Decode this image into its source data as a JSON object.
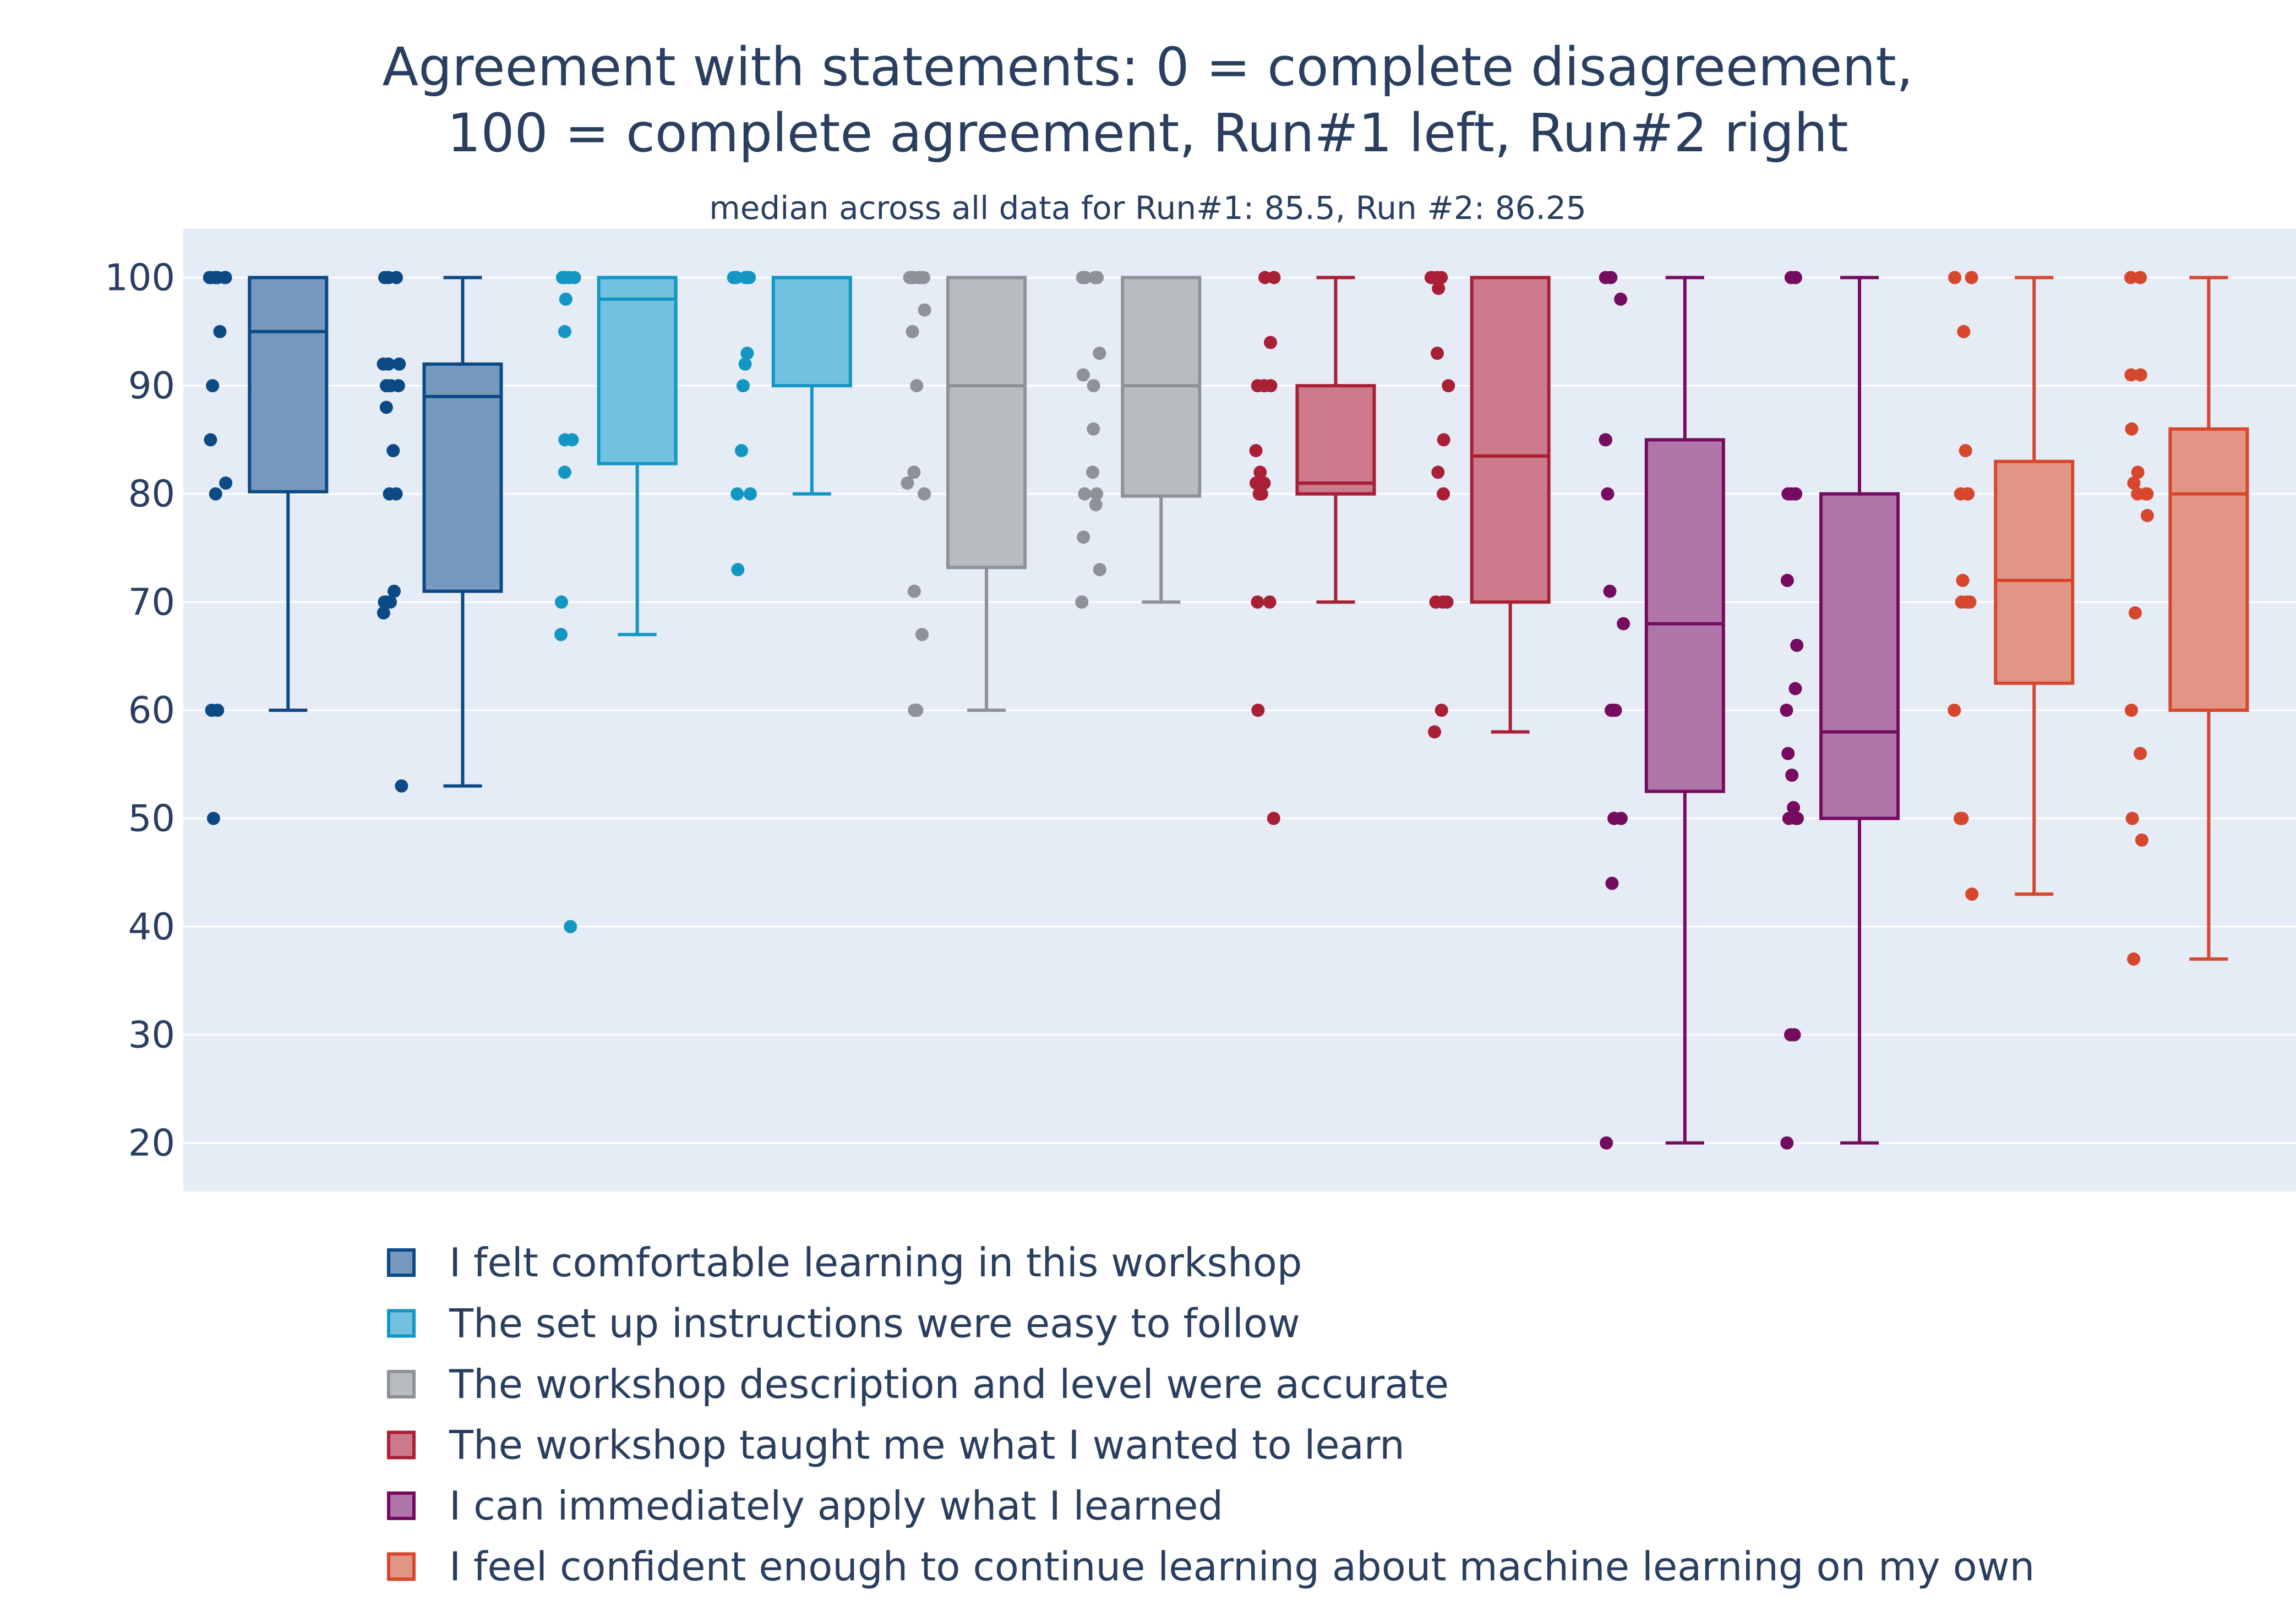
{
  "chart_data": {
    "type": "box",
    "title_lines": [
      "Agreement with statements: 0 = complete disagreement,",
      "100 = complete agreement, Run#1 left, Run#2 right"
    ],
    "subtitle": "median across all data for Run#1: 85.5, Run #2: 86.25",
    "xlabel": "",
    "ylabel": "",
    "ylim": [
      15.5,
      104.5
    ],
    "yticks": [
      20,
      30,
      40,
      50,
      60,
      70,
      80,
      90,
      100
    ],
    "grid": true,
    "legend_position": "bottom",
    "points_shown": "all",
    "series": [
      {
        "name": "I felt comfortable learning in this workshop",
        "color": "#0d4a85",
        "fill": "#7599bf",
        "runs": [
          {
            "run": "Run#1",
            "min": 60,
            "q1": 80.2,
            "median": 95,
            "q3": 100,
            "max": 100,
            "points": [
              100,
              100,
              100,
              100,
              100,
              100,
              100,
              100,
              95,
              90,
              85,
              81,
              80,
              60,
              60,
              50
            ]
          },
          {
            "run": "Run#2",
            "min": 53,
            "q1": 71,
            "median": 89,
            "q3": 92,
            "max": 100,
            "points": [
              100,
              100,
              100,
              92,
              92,
              92,
              90,
              90,
              90,
              88,
              84,
              80,
              80,
              71,
              70,
              70,
              70,
              69,
              53
            ]
          }
        ]
      },
      {
        "name": "The set up instructions were easy to follow",
        "color": "#1396c4",
        "fill": "#72c2df",
        "runs": [
          {
            "run": "Run#1",
            "min": 67,
            "q1": 82.8,
            "median": 98,
            "q3": 100,
            "max": 100,
            "points": [
              100,
              100,
              100,
              100,
              100,
              100,
              98,
              95,
              85,
              85,
              82,
              70,
              67,
              40
            ]
          },
          {
            "run": "Run#2",
            "min": 80,
            "q1": 90,
            "median": 100,
            "q3": 100,
            "max": 100,
            "points": [
              100,
              100,
              100,
              100,
              100,
              100,
              93,
              92,
              90,
              84,
              80,
              80,
              73
            ]
          }
        ]
      },
      {
        "name": "The workshop description and level were accurate",
        "color": "#8e9196",
        "fill": "#b9bcc0",
        "runs": [
          {
            "run": "Run#1",
            "min": 60,
            "q1": 73.2,
            "median": 90,
            "q3": 100,
            "max": 100,
            "points": [
              100,
              100,
              100,
              100,
              100,
              100,
              97,
              95,
              90,
              82,
              81,
              80,
              71,
              67,
              60,
              60
            ]
          },
          {
            "run": "Run#2",
            "min": 70,
            "q1": 79.8,
            "median": 90,
            "q3": 100,
            "max": 100,
            "points": [
              100,
              100,
              100,
              100,
              93,
              91,
              90,
              86,
              82,
              80,
              80,
              79,
              76,
              73,
              70
            ]
          }
        ]
      },
      {
        "name": "The workshop taught me what I wanted to learn",
        "color": "#a81f36",
        "fill": "#cb7b8b",
        "runs": [
          {
            "run": "Run#1",
            "min": 70,
            "q1": 80,
            "median": 81,
            "q3": 90,
            "max": 100,
            "points": [
              100,
              100,
              94,
              90,
              90,
              90,
              84,
              82,
              81,
              81,
              80,
              80,
              80,
              70,
              70,
              60,
              50
            ]
          },
          {
            "run": "Run#2",
            "min": 58,
            "q1": 70,
            "median": 83.5,
            "q3": 100,
            "max": 100,
            "points": [
              100,
              100,
              100,
              100,
              99,
              93,
              90,
              85,
              82,
              80,
              70,
              70,
              70,
              60,
              58
            ]
          }
        ]
      },
      {
        "name": "I can immediately apply what I learned",
        "color": "#750c60",
        "fill": "#b076a9",
        "runs": [
          {
            "run": "Run#1",
            "min": 20,
            "q1": 52.5,
            "median": 68,
            "q3": 85,
            "max": 100,
            "points": [
              100,
              100,
              98,
              85,
              85,
              80,
              71,
              68,
              60,
              60,
              60,
              50,
              50,
              50,
              44,
              20
            ]
          },
          {
            "run": "Run#2",
            "min": 20,
            "q1": 50,
            "median": 58,
            "q3": 80,
            "max": 100,
            "points": [
              100,
              100,
              80,
              80,
              80,
              72,
              66,
              62,
              60,
              56,
              54,
              51,
              50,
              50,
              50,
              30,
              30,
              20
            ]
          }
        ]
      },
      {
        "name": "I feel confident enough to continue learning about machine learning on my own",
        "color": "#d6472e",
        "fill": "#e19585",
        "runs": [
          {
            "run": "Run#1",
            "min": 43,
            "q1": 62.5,
            "median": 72,
            "q3": 83,
            "max": 100,
            "points": [
              100,
              100,
              95,
              84,
              80,
              80,
              80,
              72,
              70,
              70,
              70,
              60,
              50,
              50,
              43
            ]
          },
          {
            "run": "Run#2",
            "min": 37,
            "q1": 60,
            "median": 80,
            "q3": 86,
            "max": 100,
            "points": [
              100,
              100,
              91,
              91,
              86,
              82,
              81,
              80,
              80,
              80,
              78,
              69,
              60,
              56,
              50,
              48,
              37
            ]
          }
        ]
      }
    ]
  }
}
